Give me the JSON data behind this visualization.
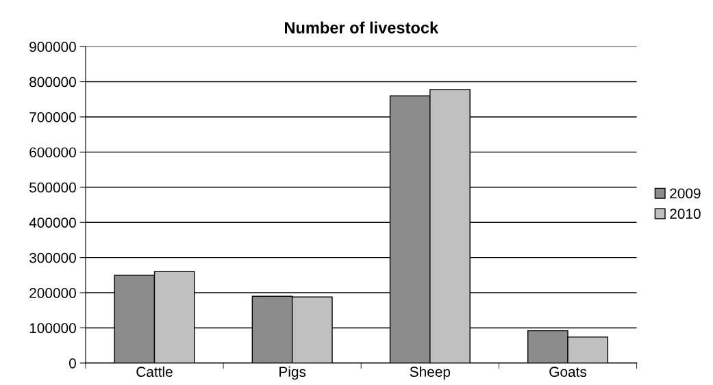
{
  "chart_data": {
    "type": "bar",
    "title": "Number of livestock",
    "categories": [
      "Cattle",
      "Pigs",
      "Sheep",
      "Goats"
    ],
    "series": [
      {
        "name": "2009",
        "color": "#8c8c8c",
        "values": [
          250000,
          190000,
          760000,
          92000
        ]
      },
      {
        "name": "2010",
        "color": "#c0c0c0",
        "values": [
          260000,
          188000,
          778000,
          74000
        ]
      }
    ],
    "ylim": [
      0,
      900000
    ],
    "yticks": [
      0,
      100000,
      200000,
      300000,
      400000,
      500000,
      600000,
      700000,
      800000,
      900000
    ],
    "grid": "y",
    "legend": "right"
  }
}
